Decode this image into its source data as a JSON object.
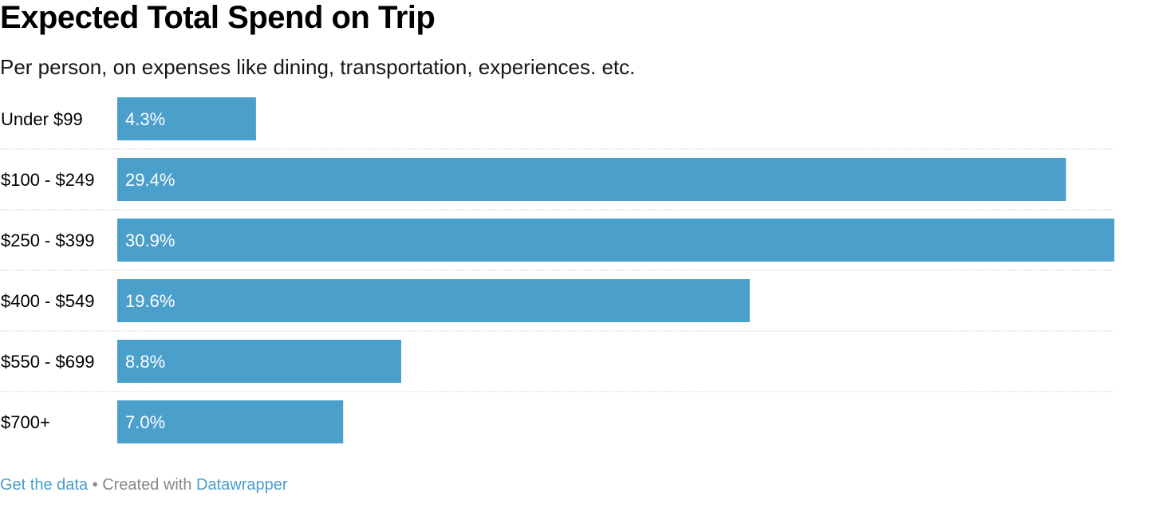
{
  "title": "Expected Total Spend on Trip",
  "subtitle": "Per person, on expenses like dining, transportation, experiences. etc.",
  "chart_data": {
    "type": "bar",
    "orientation": "horizontal",
    "categories": [
      "Under $99",
      "$100 - $249",
      "$250 - $399",
      "$400 - $549",
      "$550 - $699",
      "$700+"
    ],
    "values": [
      4.3,
      29.4,
      30.9,
      19.6,
      8.8,
      7.0
    ],
    "value_labels": [
      "4.3%",
      "29.4%",
      "30.9%",
      "19.6%",
      "8.8%",
      "7.0%"
    ],
    "unit": "%",
    "xlim": [
      0,
      30.9
    ],
    "bar_color": "#4a9fcb",
    "grid": false,
    "separators": "dotted"
  },
  "footer": {
    "get_data": "Get the data",
    "separator": " • Created with ",
    "datawrapper": "Datawrapper"
  }
}
